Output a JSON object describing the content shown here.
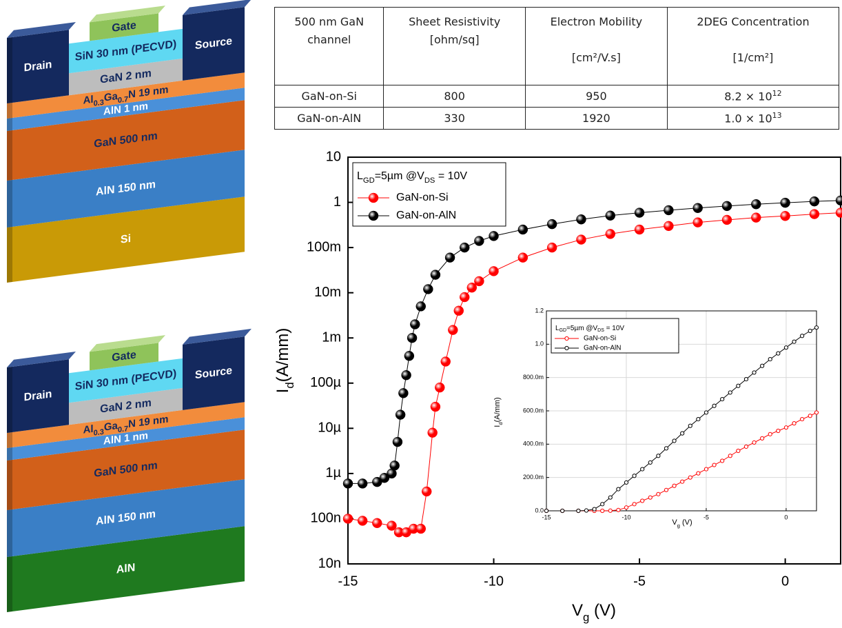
{
  "diagrams": [
    {
      "gate": "Gate",
      "drain": "Drain",
      "source": "Source",
      "sin": "SiN 30 nm (PECVD)",
      "gan_cap": "GaN 2 nm",
      "algan": [
        "Al",
        "0.3",
        "Ga",
        "0.7",
        "N 19 nm"
      ],
      "aln_spacer": "AlN 1 nm",
      "gan_channel": "GaN 500 nm",
      "aln_buffer": "AlN 150 nm",
      "substrate": "Si"
    },
    {
      "gate": "Gate",
      "drain": "Drain",
      "source": "Source",
      "sin": "SiN 30 nm (PECVD)",
      "gan_cap": "GaN 2 nm",
      "algan": [
        "Al",
        "0.3",
        "Ga",
        "0.7",
        "N 19 nm"
      ],
      "aln_spacer": "AlN 1 nm",
      "gan_channel": "GaN 500 nm",
      "aln_buffer": "AlN 150 nm",
      "substrate": "AlN"
    }
  ],
  "table": {
    "header": [
      [
        "500 nm GaN",
        "channel"
      ],
      [
        "Sheet Resistivity",
        "[ohm/sq]"
      ],
      [
        "Electron Mobility",
        "[cm²/V.s]"
      ],
      [
        "2DEG Concentration",
        "[1/cm²]"
      ]
    ],
    "rows": [
      [
        "GaN-on-Si",
        "800",
        "950",
        {
          "base": "8.2 × 10",
          "exp": "12"
        }
      ],
      [
        "GaN-on-AlN",
        "330",
        "1920",
        {
          "base": "1.0 × 10",
          "exp": "13"
        }
      ]
    ]
  },
  "chart_data": [
    {
      "type": "line",
      "log_y": true,
      "grid": false,
      "legend": "top-left",
      "x_label": [
        "V",
        "g",
        " (V)"
      ],
      "y_label": [
        "I",
        "d",
        "(A/mm)"
      ],
      "legend_title": [
        "L",
        "GD",
        "=5µm @V",
        "DS",
        " = 10V"
      ],
      "xlim": [
        -15,
        1.9
      ],
      "xticks": [
        -15,
        -10,
        -5,
        0
      ],
      "ylim": [
        1e-08,
        10
      ],
      "yticks": [
        {
          "value": 1e-08,
          "label": "10n"
        },
        {
          "value": 1e-07,
          "label": "100n"
        },
        {
          "value": 1e-06,
          "label": "1µ"
        },
        {
          "value": 1e-05,
          "label": "10µ"
        },
        {
          "value": 0.0001,
          "label": "100µ"
        },
        {
          "value": 0.001,
          "label": "1m"
        },
        {
          "value": 0.01,
          "label": "10m"
        },
        {
          "value": 0.1,
          "label": "100m"
        },
        1,
        10
      ],
      "series": [
        {
          "name": "GaN-on-Si",
          "color": "#ff0000",
          "x": [
            -15,
            -14.5,
            -14,
            -13.5,
            -13.25,
            -13,
            -12.75,
            -12.5,
            -12.3,
            -12.1,
            -12,
            -11.85,
            -11.65,
            -11.4,
            -11.2,
            -11,
            -10.75,
            -10.5,
            -10,
            -9,
            -8,
            -7,
            -6,
            -5,
            -4,
            -3,
            -2,
            -1,
            0,
            1,
            1.9
          ],
          "values": [
            1e-07,
            9e-08,
            8e-08,
            7e-08,
            5e-08,
            5e-08,
            6e-08,
            6e-08,
            4e-07,
            8e-06,
            3e-05,
            8e-05,
            0.0003,
            0.0015,
            0.004,
            0.008,
            0.013,
            0.018,
            0.03,
            0.06,
            0.1,
            0.15,
            0.2,
            0.25,
            0.3,
            0.36,
            0.41,
            0.46,
            0.5,
            0.55,
            0.59
          ]
        },
        {
          "name": "GaN-on-AlN",
          "color": "#000000",
          "x": [
            -15,
            -14.5,
            -14,
            -13.75,
            -13.5,
            -13.4,
            -13.3,
            -13.2,
            -13.1,
            -13,
            -12.9,
            -12.8,
            -12.7,
            -12.5,
            -12.25,
            -12,
            -11.5,
            -11,
            -10.5,
            -10,
            -9,
            -8,
            -7,
            -6,
            -5,
            -4,
            -3,
            -2,
            -1,
            0,
            1,
            1.9
          ],
          "values": [
            6e-07,
            6e-07,
            6.5e-07,
            8e-07,
            1e-06,
            1.5e-06,
            5e-06,
            2e-05,
            6e-05,
            0.00015,
            0.0004,
            0.001,
            0.002,
            0.005,
            0.012,
            0.025,
            0.06,
            0.1,
            0.14,
            0.18,
            0.25,
            0.33,
            0.42,
            0.51,
            0.59,
            0.67,
            0.75,
            0.83,
            0.91,
            0.98,
            1.05,
            1.1
          ]
        }
      ]
    },
    {
      "type": "line",
      "log_y": false,
      "grid": true,
      "legend": "top-left",
      "x_label": [
        "V",
        "g",
        " (V)"
      ],
      "y_label": [
        "I",
        "d",
        "(A/mm)"
      ],
      "legend_title": [
        "L",
        "GD",
        "=5µm @V",
        "DS",
        " = 10V"
      ],
      "xlim": [
        -15,
        1.9
      ],
      "xticks": [
        -15,
        -10,
        -5,
        0
      ],
      "ylim": [
        0,
        1.2
      ],
      "yticks": [
        {
          "value": 0,
          "label": "0.0"
        },
        {
          "value": 0.2,
          "label": "200.0m"
        },
        {
          "value": 0.4,
          "label": "400.0m"
        },
        {
          "value": 0.6,
          "label": "600.0m"
        },
        {
          "value": 0.8,
          "label": "800.0m"
        },
        {
          "value": 1,
          "label": "1.0"
        },
        1.2
      ],
      "series": [
        {
          "name": "GaN-on-Si",
          "color": "#ff0000",
          "x": [
            -15,
            -14,
            -13,
            -12,
            -11.5,
            -11,
            -10.5,
            -10,
            -9.5,
            -9,
            -8.5,
            -8,
            -7.5,
            -7,
            -6.5,
            -6,
            -5.5,
            -5,
            -4.5,
            -4,
            -3.5,
            -3,
            -2.5,
            -2,
            -1.5,
            -1,
            -0.5,
            0,
            0.5,
            1,
            1.5,
            1.9
          ],
          "values": [
            0,
            0,
            0,
            0,
            0,
            0.001,
            0.005,
            0.02,
            0.04,
            0.06,
            0.08,
            0.1,
            0.125,
            0.15,
            0.175,
            0.2,
            0.225,
            0.25,
            0.275,
            0.3,
            0.33,
            0.36,
            0.385,
            0.41,
            0.435,
            0.46,
            0.48,
            0.5,
            0.525,
            0.55,
            0.57,
            0.59
          ]
        },
        {
          "name": "GaN-on-AlN",
          "color": "#000000",
          "x": [
            -15,
            -14,
            -13,
            -12.5,
            -12,
            -11.5,
            -11,
            -10.5,
            -10,
            -9.5,
            -9,
            -8.5,
            -8,
            -7.5,
            -7,
            -6.5,
            -6,
            -5.5,
            -5,
            -4.5,
            -4,
            -3.5,
            -3,
            -2.5,
            -2,
            -1.5,
            -1,
            -0.5,
            0,
            0.5,
            1,
            1.5,
            1.9
          ],
          "values": [
            0,
            0,
            0,
            0.002,
            0.01,
            0.04,
            0.08,
            0.13,
            0.17,
            0.21,
            0.25,
            0.29,
            0.33,
            0.375,
            0.42,
            0.465,
            0.51,
            0.55,
            0.59,
            0.63,
            0.67,
            0.71,
            0.75,
            0.79,
            0.83,
            0.87,
            0.91,
            0.945,
            0.98,
            1.015,
            1.05,
            1.08,
            1.1
          ]
        }
      ]
    }
  ]
}
